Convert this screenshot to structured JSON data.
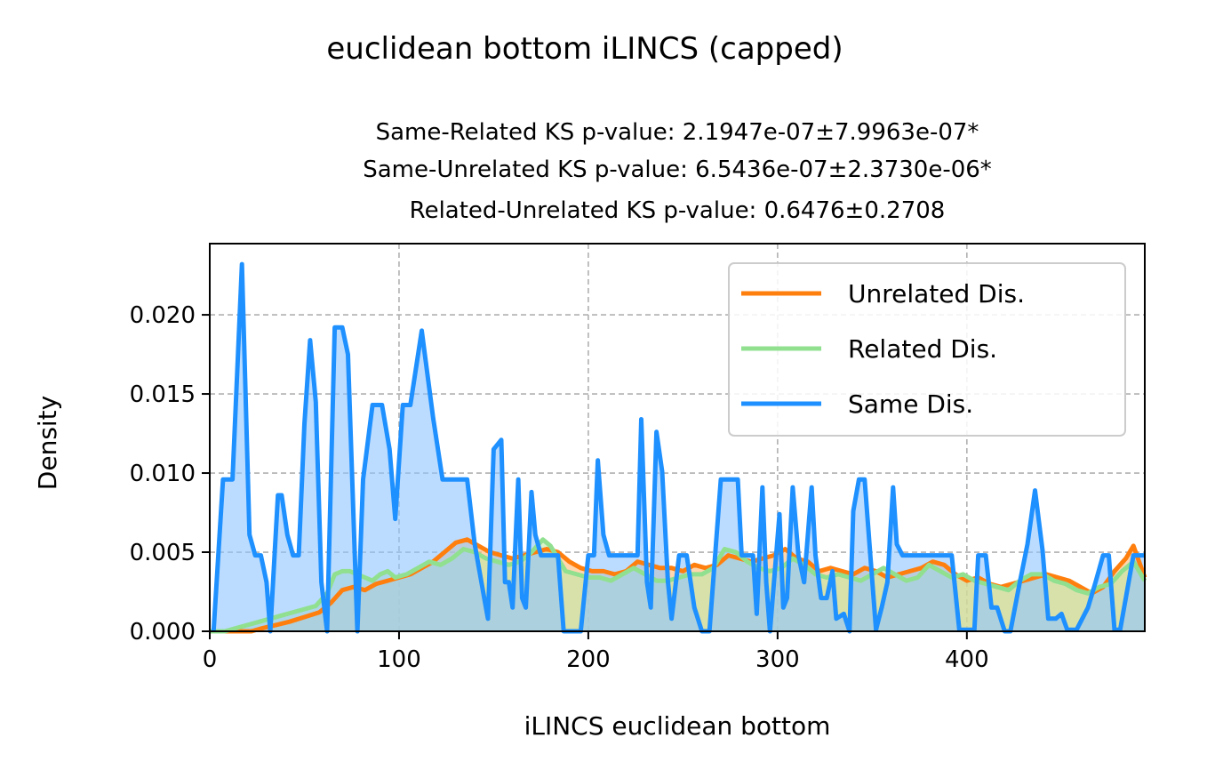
{
  "chart_data": {
    "type": "area",
    "suptitle": "euclidean bottom iLINCS (capped)",
    "subtitle_lines": [
      "Same-Related KS p-value: 2.1947e-07±7.9963e-07*",
      "Same-Unrelated KS p-value: 6.5436e-07±2.3730e-06*",
      "Related-Unrelated KS p-value: 0.6476±0.2708"
    ],
    "xlabel": "iLINCS euclidean bottom",
    "ylabel": "Density",
    "xlim": [
      0,
      494
    ],
    "ylim": [
      0,
      0.0245
    ],
    "x_ticks": [
      0,
      100,
      200,
      300,
      400
    ],
    "y_ticks": [
      0.0,
      0.005,
      0.01,
      0.015,
      0.02
    ],
    "x_tick_labels": [
      "0",
      "100",
      "200",
      "300",
      "400"
    ],
    "y_tick_labels": [
      "0.000",
      "0.005",
      "0.010",
      "0.015",
      "0.020"
    ],
    "grid": true,
    "legend_position": "upper-right",
    "series": [
      {
        "name": "Unrelated Dis.",
        "color": "#ff7f0e",
        "fill": "#ffbb78",
        "points": [
          [
            0,
            0
          ],
          [
            22,
            0
          ],
          [
            28,
            0.0002
          ],
          [
            35,
            0.0004
          ],
          [
            42,
            0.0006
          ],
          [
            50,
            0.0009
          ],
          [
            58,
            0.0012
          ],
          [
            64,
            0.0018
          ],
          [
            70,
            0.0026
          ],
          [
            76,
            0.0028
          ],
          [
            82,
            0.0026
          ],
          [
            88,
            0.003
          ],
          [
            94,
            0.0032
          ],
          [
            100,
            0.0034
          ],
          [
            106,
            0.0036
          ],
          [
            112,
            0.004
          ],
          [
            118,
            0.0044
          ],
          [
            124,
            0.005
          ],
          [
            130,
            0.0056
          ],
          [
            136,
            0.0058
          ],
          [
            142,
            0.0054
          ],
          [
            148,
            0.005
          ],
          [
            154,
            0.0048
          ],
          [
            160,
            0.0046
          ],
          [
            166,
            0.0048
          ],
          [
            172,
            0.005
          ],
          [
            178,
            0.0052
          ],
          [
            184,
            0.005
          ],
          [
            190,
            0.0044
          ],
          [
            196,
            0.004
          ],
          [
            202,
            0.0038
          ],
          [
            208,
            0.0038
          ],
          [
            214,
            0.0036
          ],
          [
            220,
            0.0038
          ],
          [
            226,
            0.0044
          ],
          [
            232,
            0.0042
          ],
          [
            238,
            0.004
          ],
          [
            244,
            0.004
          ],
          [
            250,
            0.0038
          ],
          [
            256,
            0.0042
          ],
          [
            262,
            0.004
          ],
          [
            268,
            0.0042
          ],
          [
            274,
            0.0048
          ],
          [
            280,
            0.0046
          ],
          [
            286,
            0.0044
          ],
          [
            292,
            0.0046
          ],
          [
            298,
            0.0048
          ],
          [
            304,
            0.0052
          ],
          [
            310,
            0.0046
          ],
          [
            316,
            0.0044
          ],
          [
            322,
            0.0038
          ],
          [
            328,
            0.004
          ],
          [
            334,
            0.0038
          ],
          [
            340,
            0.0036
          ],
          [
            346,
            0.004
          ],
          [
            352,
            0.0038
          ],
          [
            358,
            0.0034
          ],
          [
            364,
            0.0036
          ],
          [
            370,
            0.0038
          ],
          [
            376,
            0.004
          ],
          [
            382,
            0.0044
          ],
          [
            388,
            0.0042
          ],
          [
            394,
            0.0036
          ],
          [
            400,
            0.0032
          ],
          [
            406,
            0.0034
          ],
          [
            412,
            0.003
          ],
          [
            418,
            0.0028
          ],
          [
            424,
            0.003
          ],
          [
            430,
            0.0032
          ],
          [
            436,
            0.0034
          ],
          [
            442,
            0.0036
          ],
          [
            448,
            0.0034
          ],
          [
            454,
            0.0032
          ],
          [
            460,
            0.0028
          ],
          [
            466,
            0.0024
          ],
          [
            472,
            0.0028
          ],
          [
            478,
            0.0038
          ],
          [
            484,
            0.0046
          ],
          [
            488,
            0.0054
          ],
          [
            494,
            0.0034
          ]
        ]
      },
      {
        "name": "Related Dis.",
        "color": "#90e090",
        "fill": "#c0e8a8",
        "points": [
          [
            0,
            0
          ],
          [
            8,
            0
          ],
          [
            14,
            0.0002
          ],
          [
            20,
            0.0004
          ],
          [
            26,
            0.0006
          ],
          [
            32,
            0.0008
          ],
          [
            38,
            0.001
          ],
          [
            44,
            0.0012
          ],
          [
            50,
            0.0014
          ],
          [
            56,
            0.0016
          ],
          [
            62,
            0.0024
          ],
          [
            66,
            0.0036
          ],
          [
            70,
            0.0038
          ],
          [
            74,
            0.0038
          ],
          [
            78,
            0.0036
          ],
          [
            82,
            0.0034
          ],
          [
            86,
            0.0032
          ],
          [
            90,
            0.0036
          ],
          [
            94,
            0.0038
          ],
          [
            98,
            0.0034
          ],
          [
            104,
            0.0036
          ],
          [
            110,
            0.004
          ],
          [
            116,
            0.0044
          ],
          [
            122,
            0.0042
          ],
          [
            128,
            0.0046
          ],
          [
            134,
            0.0052
          ],
          [
            140,
            0.005
          ],
          [
            146,
            0.0046
          ],
          [
            152,
            0.0044
          ],
          [
            158,
            0.0042
          ],
          [
            164,
            0.0044
          ],
          [
            170,
            0.005
          ],
          [
            176,
            0.0058
          ],
          [
            180,
            0.0054
          ],
          [
            184,
            0.0046
          ],
          [
            188,
            0.0038
          ],
          [
            194,
            0.0036
          ],
          [
            200,
            0.0034
          ],
          [
            206,
            0.0034
          ],
          [
            212,
            0.0032
          ],
          [
            218,
            0.0036
          ],
          [
            224,
            0.004
          ],
          [
            230,
            0.0036
          ],
          [
            236,
            0.0032
          ],
          [
            242,
            0.0032
          ],
          [
            248,
            0.0034
          ],
          [
            254,
            0.0036
          ],
          [
            260,
            0.0036
          ],
          [
            266,
            0.004
          ],
          [
            272,
            0.0052
          ],
          [
            278,
            0.005
          ],
          [
            284,
            0.0044
          ],
          [
            290,
            0.004
          ],
          [
            296,
            0.0038
          ],
          [
            302,
            0.004
          ],
          [
            308,
            0.0046
          ],
          [
            314,
            0.0042
          ],
          [
            320,
            0.0036
          ],
          [
            326,
            0.0034
          ],
          [
            332,
            0.0036
          ],
          [
            338,
            0.0034
          ],
          [
            344,
            0.0032
          ],
          [
            350,
            0.0036
          ],
          [
            356,
            0.004
          ],
          [
            362,
            0.0036
          ],
          [
            368,
            0.0032
          ],
          [
            374,
            0.0034
          ],
          [
            380,
            0.0042
          ],
          [
            386,
            0.0038
          ],
          [
            392,
            0.0034
          ],
          [
            398,
            0.0036
          ],
          [
            404,
            0.0032
          ],
          [
            410,
            0.003
          ],
          [
            416,
            0.0028
          ],
          [
            422,
            0.0026
          ],
          [
            428,
            0.0032
          ],
          [
            434,
            0.0036
          ],
          [
            440,
            0.0036
          ],
          [
            446,
            0.0032
          ],
          [
            452,
            0.003
          ],
          [
            458,
            0.0026
          ],
          [
            464,
            0.0024
          ],
          [
            470,
            0.0028
          ],
          [
            476,
            0.003
          ],
          [
            482,
            0.0038
          ],
          [
            488,
            0.0044
          ],
          [
            494,
            0.0032
          ]
        ]
      },
      {
        "name": "Same Dis.",
        "color": "#1e90ff",
        "fill": "#8ec5ff",
        "points": [
          [
            2,
            0
          ],
          [
            7,
            0.0096
          ],
          [
            12,
            0.0096
          ],
          [
            17,
            0.0232
          ],
          [
            21,
            0.0061
          ],
          [
            24,
            0.0048
          ],
          [
            27,
            0.0048
          ],
          [
            30,
            0.0031
          ],
          [
            32,
            0
          ],
          [
            36,
            0.0086
          ],
          [
            38,
            0.0086
          ],
          [
            41,
            0.0061
          ],
          [
            44,
            0.0048
          ],
          [
            47,
            0.0048
          ],
          [
            50,
            0.0131
          ],
          [
            53,
            0.0184
          ],
          [
            56,
            0.0145
          ],
          [
            59,
            0.0031
          ],
          [
            62,
            0
          ],
          [
            66,
            0.0192
          ],
          [
            70,
            0.0192
          ],
          [
            73,
            0.0175
          ],
          [
            78,
            0
          ],
          [
            81,
            0.0096
          ],
          [
            86,
            0.0143
          ],
          [
            91,
            0.0143
          ],
          [
            95,
            0.0115
          ],
          [
            98,
            0.0071
          ],
          [
            102,
            0.0143
          ],
          [
            106,
            0.0143
          ],
          [
            112,
            0.019
          ],
          [
            118,
            0.0135
          ],
          [
            123,
            0.0096
          ],
          [
            136,
            0.0096
          ],
          [
            140,
            0.0055
          ],
          [
            145,
            0.0021
          ],
          [
            147,
            0.0008
          ],
          [
            150,
            0.0115
          ],
          [
            154,
            0.0121
          ],
          [
            156,
            0.0031
          ],
          [
            158,
            0.0031
          ],
          [
            160,
            0.0015
          ],
          [
            163,
            0.0096
          ],
          [
            165,
            0.0021
          ],
          [
            167,
            0.0015
          ],
          [
            170,
            0.0088
          ],
          [
            172,
            0.0061
          ],
          [
            175,
            0.0048
          ],
          [
            180,
            0.0048
          ],
          [
            184,
            0.0048
          ],
          [
            187,
            0
          ],
          [
            196,
            0
          ],
          [
            200,
            0.0048
          ],
          [
            203,
            0.0048
          ],
          [
            205,
            0.0108
          ],
          [
            208,
            0.0061
          ],
          [
            211,
            0.0048
          ],
          [
            214,
            0.0048
          ],
          [
            226,
            0.0048
          ],
          [
            228,
            0.0134
          ],
          [
            231,
            0.0031
          ],
          [
            233,
            0.0015
          ],
          [
            236,
            0.0126
          ],
          [
            239,
            0.0101
          ],
          [
            242,
            0.0032
          ],
          [
            244,
            0.0008
          ],
          [
            248,
            0.0048
          ],
          [
            252,
            0.0048
          ],
          [
            256,
            0.0015
          ],
          [
            260,
            0
          ],
          [
            264,
            0
          ],
          [
            267,
            0.0048
          ],
          [
            270,
            0.0096
          ],
          [
            279,
            0.0096
          ],
          [
            281,
            0.0048
          ],
          [
            287,
            0.0048
          ],
          [
            289,
            0.0011
          ],
          [
            292,
            0.0091
          ],
          [
            294,
            0.0031
          ],
          [
            296,
            0
          ],
          [
            301,
            0.0074
          ],
          [
            303,
            0.0015
          ],
          [
            305,
            0.0021
          ],
          [
            308,
            0.0091
          ],
          [
            311,
            0.0048
          ],
          [
            314,
            0.0031
          ],
          [
            318,
            0.0091
          ],
          [
            320,
            0.0048
          ],
          [
            323,
            0.0021
          ],
          [
            326,
            0.0021
          ],
          [
            329,
            0.0038
          ],
          [
            331,
            0.0008
          ],
          [
            335,
            0.0011
          ],
          [
            338,
            0
          ],
          [
            340,
            0.0076
          ],
          [
            343,
            0.0096
          ],
          [
            346,
            0.0096
          ],
          [
            349,
            0.0048
          ],
          [
            352,
            0.0001
          ],
          [
            355,
            0.0015
          ],
          [
            358,
            0.0031
          ],
          [
            361,
            0.0091
          ],
          [
            363,
            0.0055
          ],
          [
            366,
            0.0048
          ],
          [
            372,
            0.0048
          ],
          [
            385,
            0.0048
          ],
          [
            392,
            0.0048
          ],
          [
            396,
            0.0001
          ],
          [
            400,
            0.0001
          ],
          [
            404,
            0.0001
          ],
          [
            406,
            0.0048
          ],
          [
            410,
            0.0048
          ],
          [
            413,
            0.0015
          ],
          [
            416,
            0.0015
          ],
          [
            420,
            0
          ],
          [
            423,
            0
          ],
          [
            428,
            0.0031
          ],
          [
            432,
            0.0055
          ],
          [
            436,
            0.0089
          ],
          [
            440,
            0.0051
          ],
          [
            443,
            0.0008
          ],
          [
            447,
            0.0008
          ],
          [
            450,
            0.0011
          ],
          [
            453,
            0.0001
          ],
          [
            458,
            0.0001
          ],
          [
            464,
            0.0015
          ],
          [
            468,
            0.0031
          ],
          [
            472,
            0.0048
          ],
          [
            475,
            0.0048
          ],
          [
            478,
            0.0001
          ],
          [
            481,
            0.0001
          ],
          [
            488,
            0.0048
          ],
          [
            494,
            0.0048
          ]
        ]
      }
    ]
  }
}
